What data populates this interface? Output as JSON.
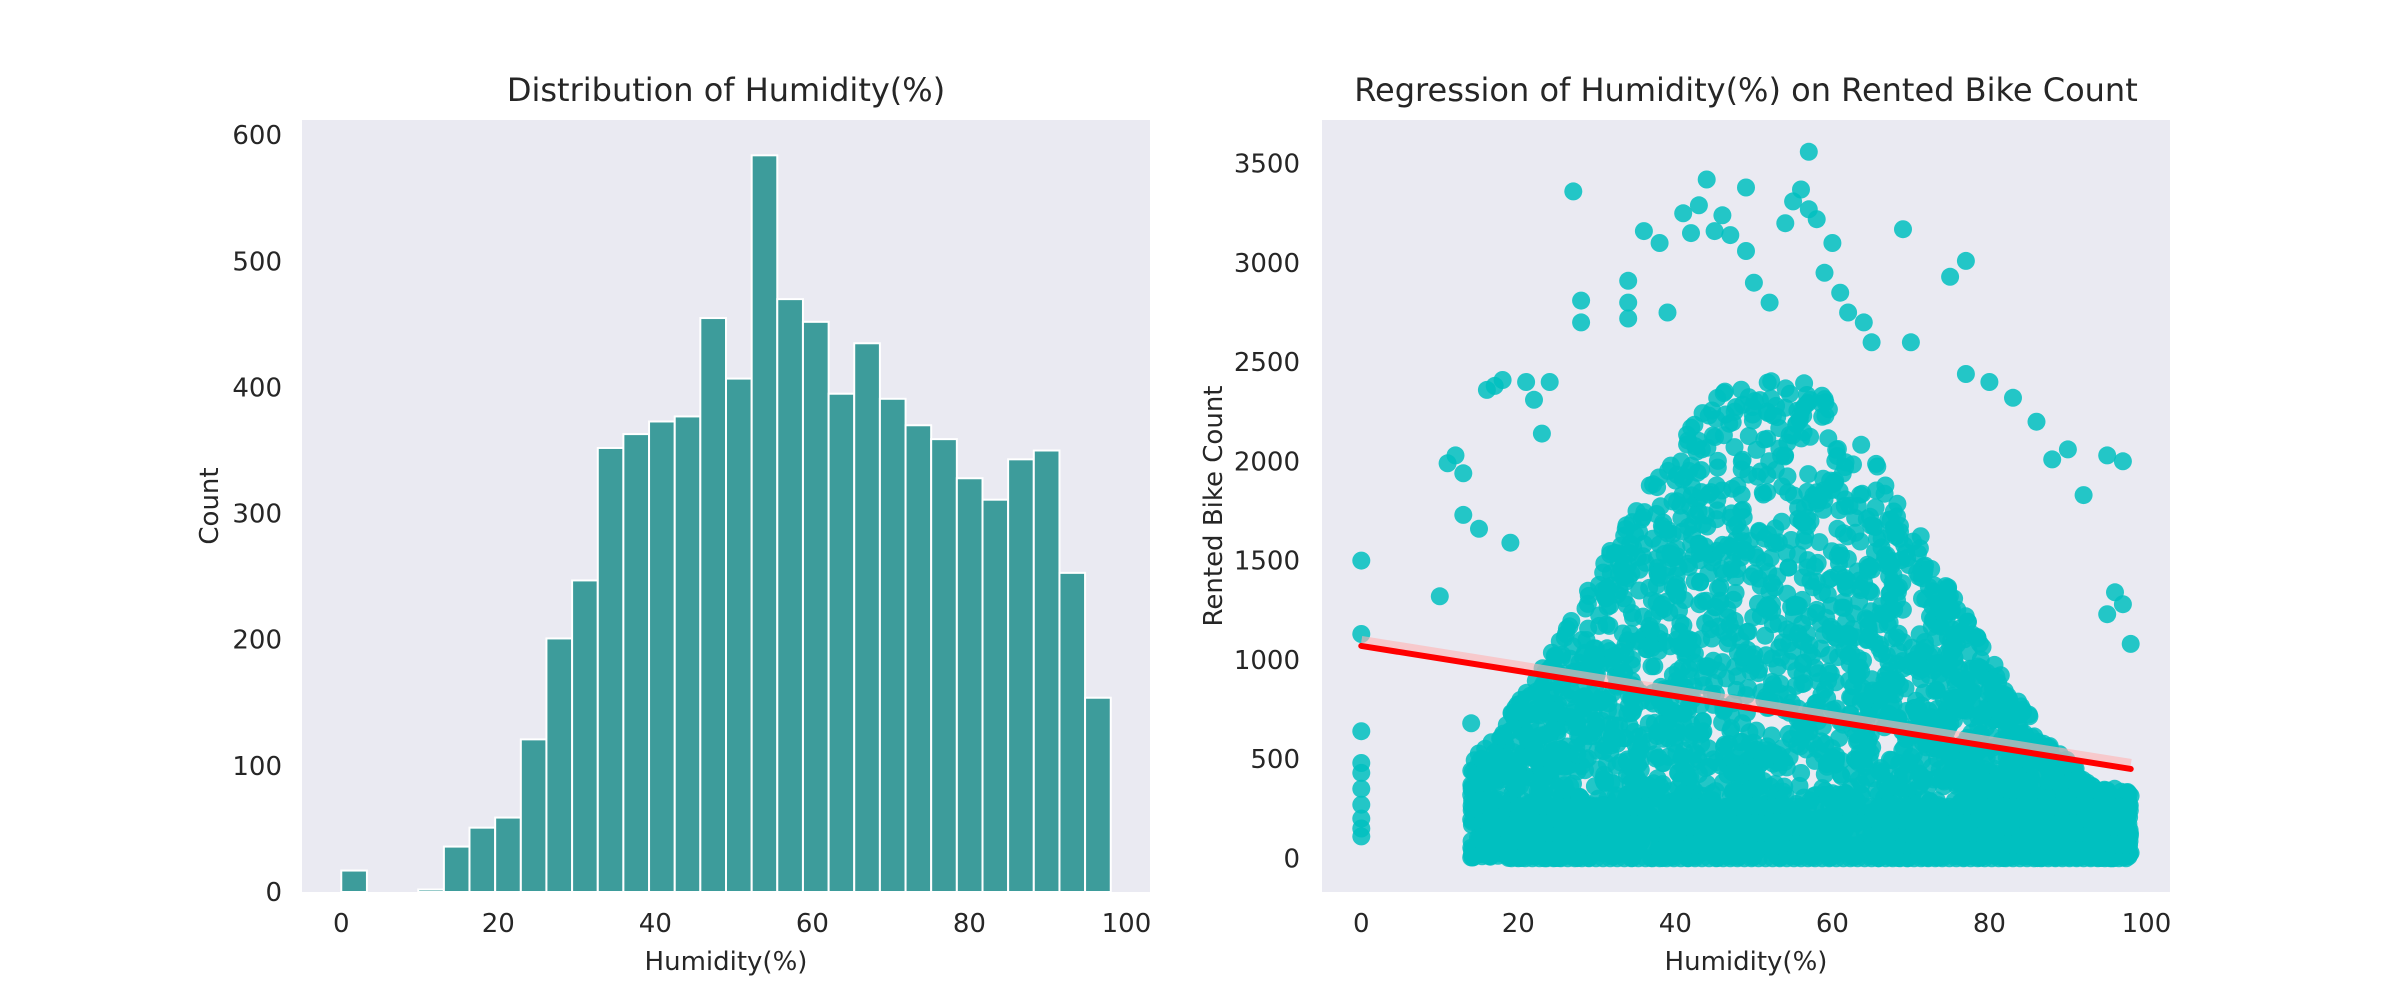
{
  "chart_data": [
    {
      "type": "bar",
      "title": "Distribution of Humidity(%)",
      "xlabel": "Humidity(%)",
      "ylabel": "Count",
      "xlim": [
        -5,
        103
      ],
      "ylim": [
        0,
        612
      ],
      "xticks": [
        0,
        20,
        40,
        60,
        80,
        100
      ],
      "yticks": [
        0,
        100,
        200,
        300,
        400,
        500,
        600
      ],
      "grid": false,
      "colors": {
        "bar": "#3d9c9b",
        "edge": "#ffffff",
        "background": "#eaeaf2"
      },
      "bins": [
        {
          "x0": 0.0,
          "x1": 3.27,
          "count": 17
        },
        {
          "x0": 3.27,
          "x1": 6.53,
          "count": 0
        },
        {
          "x0": 6.53,
          "x1": 9.8,
          "count": 0
        },
        {
          "x0": 9.8,
          "x1": 13.07,
          "count": 2
        },
        {
          "x0": 13.07,
          "x1": 16.33,
          "count": 36
        },
        {
          "x0": 16.33,
          "x1": 19.6,
          "count": 51
        },
        {
          "x0": 19.6,
          "x1": 22.87,
          "count": 59
        },
        {
          "x0": 22.87,
          "x1": 26.13,
          "count": 121
        },
        {
          "x0": 26.13,
          "x1": 29.4,
          "count": 201
        },
        {
          "x0": 29.4,
          "x1": 32.67,
          "count": 247
        },
        {
          "x0": 32.67,
          "x1": 35.93,
          "count": 352
        },
        {
          "x0": 35.93,
          "x1": 39.2,
          "count": 363
        },
        {
          "x0": 39.2,
          "x1": 42.47,
          "count": 373
        },
        {
          "x0": 42.47,
          "x1": 45.73,
          "count": 377
        },
        {
          "x0": 45.73,
          "x1": 49.0,
          "count": 455
        },
        {
          "x0": 49.0,
          "x1": 52.27,
          "count": 407
        },
        {
          "x0": 52.27,
          "x1": 55.53,
          "count": 584
        },
        {
          "x0": 55.53,
          "x1": 58.8,
          "count": 470
        },
        {
          "x0": 58.8,
          "x1": 62.07,
          "count": 452
        },
        {
          "x0": 62.07,
          "x1": 65.33,
          "count": 395
        },
        {
          "x0": 65.33,
          "x1": 68.6,
          "count": 435
        },
        {
          "x0": 68.6,
          "x1": 71.87,
          "count": 391
        },
        {
          "x0": 71.87,
          "x1": 75.13,
          "count": 370
        },
        {
          "x0": 75.13,
          "x1": 78.4,
          "count": 359
        },
        {
          "x0": 78.4,
          "x1": 81.67,
          "count": 328
        },
        {
          "x0": 81.67,
          "x1": 84.93,
          "count": 311
        },
        {
          "x0": 84.93,
          "x1": 88.2,
          "count": 343
        },
        {
          "x0": 88.2,
          "x1": 91.47,
          "count": 350
        },
        {
          "x0": 91.47,
          "x1": 94.73,
          "count": 253
        },
        {
          "x0": 94.73,
          "x1": 98.0,
          "count": 154
        }
      ]
    },
    {
      "type": "scatter",
      "title": "Regression of Humidity(%) on Rented Bike Count",
      "xlabel": "Humidity(%)",
      "ylabel": "Rented Bike Count",
      "xlim": [
        -5,
        103
      ],
      "ylim": [
        -170,
        3720
      ],
      "xticks": [
        0,
        20,
        40,
        60,
        80,
        100
      ],
      "yticks": [
        0,
        500,
        1000,
        1500,
        2000,
        2500,
        3000,
        3500
      ],
      "grid": false,
      "colors": {
        "points": "#00bfbf",
        "regression_line": "#ff0000",
        "background": "#eaeaf2"
      },
      "regression_line": {
        "x": [
          0,
          98
        ],
        "y": [
          1070,
          450
        ]
      },
      "outlier_points": [
        [
          0,
          1500
        ],
        [
          0,
          1130
        ],
        [
          0,
          640
        ],
        [
          0,
          480
        ],
        [
          0,
          430
        ],
        [
          0,
          350
        ],
        [
          0,
          270
        ],
        [
          0,
          200
        ],
        [
          0,
          150
        ],
        [
          0,
          110
        ],
        [
          10,
          1320
        ],
        [
          11,
          1990
        ],
        [
          12,
          2030
        ],
        [
          13,
          1940
        ],
        [
          13,
          1730
        ],
        [
          14,
          680
        ],
        [
          15,
          1660
        ],
        [
          16,
          2360
        ],
        [
          17,
          2380
        ],
        [
          18,
          2410
        ],
        [
          19,
          1590
        ],
        [
          21,
          2400
        ],
        [
          22,
          2310
        ],
        [
          24,
          2400
        ],
        [
          23,
          2140
        ],
        [
          27,
          3360
        ],
        [
          28,
          2810
        ],
        [
          28,
          2700
        ],
        [
          34,
          2910
        ],
        [
          34,
          2800
        ],
        [
          34,
          2720
        ],
        [
          36,
          3160
        ],
        [
          38,
          3100
        ],
        [
          39,
          2750
        ],
        [
          41,
          3250
        ],
        [
          42,
          3150
        ],
        [
          43,
          3290
        ],
        [
          44,
          3420
        ],
        [
          45,
          3160
        ],
        [
          46,
          3240
        ],
        [
          47,
          3140
        ],
        [
          49,
          3380
        ],
        [
          49,
          3060
        ],
        [
          50,
          2900
        ],
        [
          52,
          2800
        ],
        [
          54,
          3200
        ],
        [
          55,
          3310
        ],
        [
          56,
          3370
        ],
        [
          57,
          3560
        ],
        [
          57,
          3270
        ],
        [
          58,
          3220
        ],
        [
          59,
          2950
        ],
        [
          60,
          3100
        ],
        [
          61,
          2850
        ],
        [
          62,
          2750
        ],
        [
          64,
          2700
        ],
        [
          65,
          2600
        ],
        [
          69,
          3170
        ],
        [
          70,
          2600
        ],
        [
          75,
          2930
        ],
        [
          77,
          3010
        ],
        [
          77,
          2440
        ],
        [
          80,
          2400
        ],
        [
          83,
          2320
        ],
        [
          86,
          2200
        ],
        [
          88,
          2010
        ],
        [
          90,
          2060
        ],
        [
          92,
          1830
        ],
        [
          95,
          2030
        ],
        [
          97,
          2000
        ],
        [
          98,
          1080
        ],
        [
          97,
          1280
        ],
        [
          96,
          1340
        ],
        [
          95,
          1230
        ]
      ]
    }
  ]
}
